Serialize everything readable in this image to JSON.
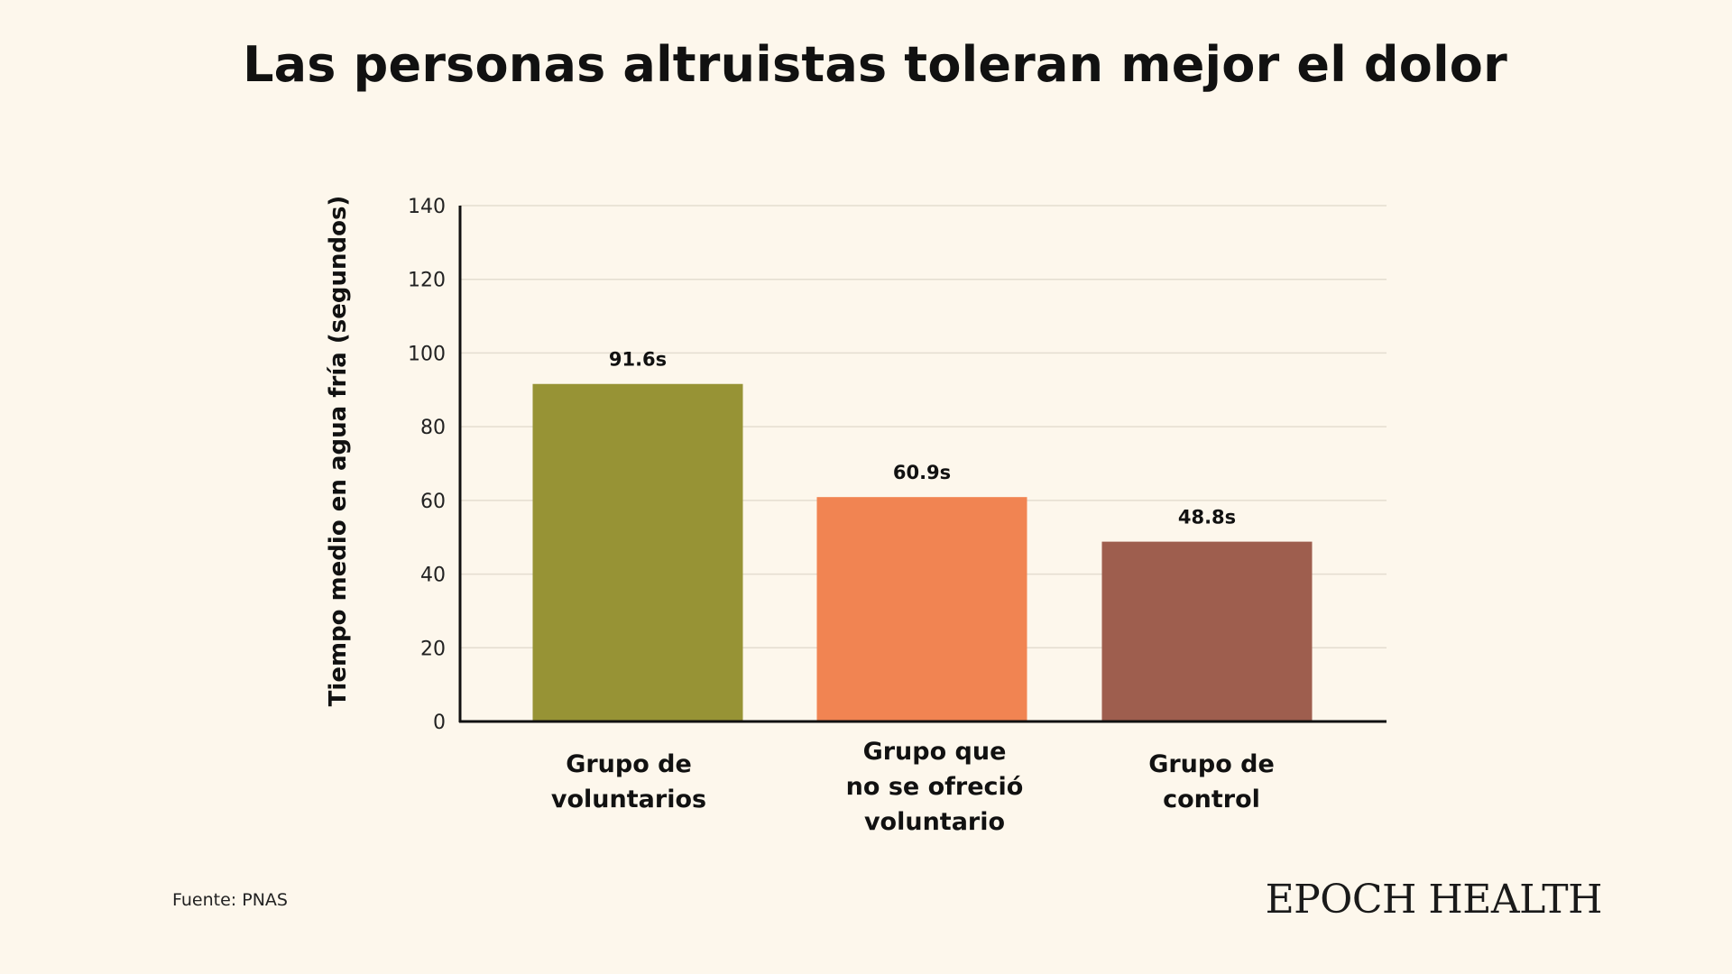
{
  "chart_data": {
    "type": "bar",
    "title": "Las personas altruistas toleran mejor el dolor",
    "xlabel": "",
    "ylabel": "Tiempo medio en agua fría (segundos)",
    "ylim": [
      0,
      140
    ],
    "yticks": [
      0,
      20,
      40,
      60,
      80,
      100,
      120,
      140
    ],
    "grid": true,
    "categories": [
      "Grupo de\nvoluntarios",
      "Grupo que\nno se ofreció\nvoluntario",
      "Grupo de\ncontrol"
    ],
    "values": [
      91.6,
      60.9,
      48.8
    ],
    "value_labels": [
      "91.6s",
      "60.9s",
      "48.8s"
    ],
    "colors": [
      "#979335",
      "#f18452",
      "#9e5e4e"
    ]
  },
  "footer": {
    "source": "Fuente: PNAS",
    "brand": "EPOCH HEALTH"
  }
}
